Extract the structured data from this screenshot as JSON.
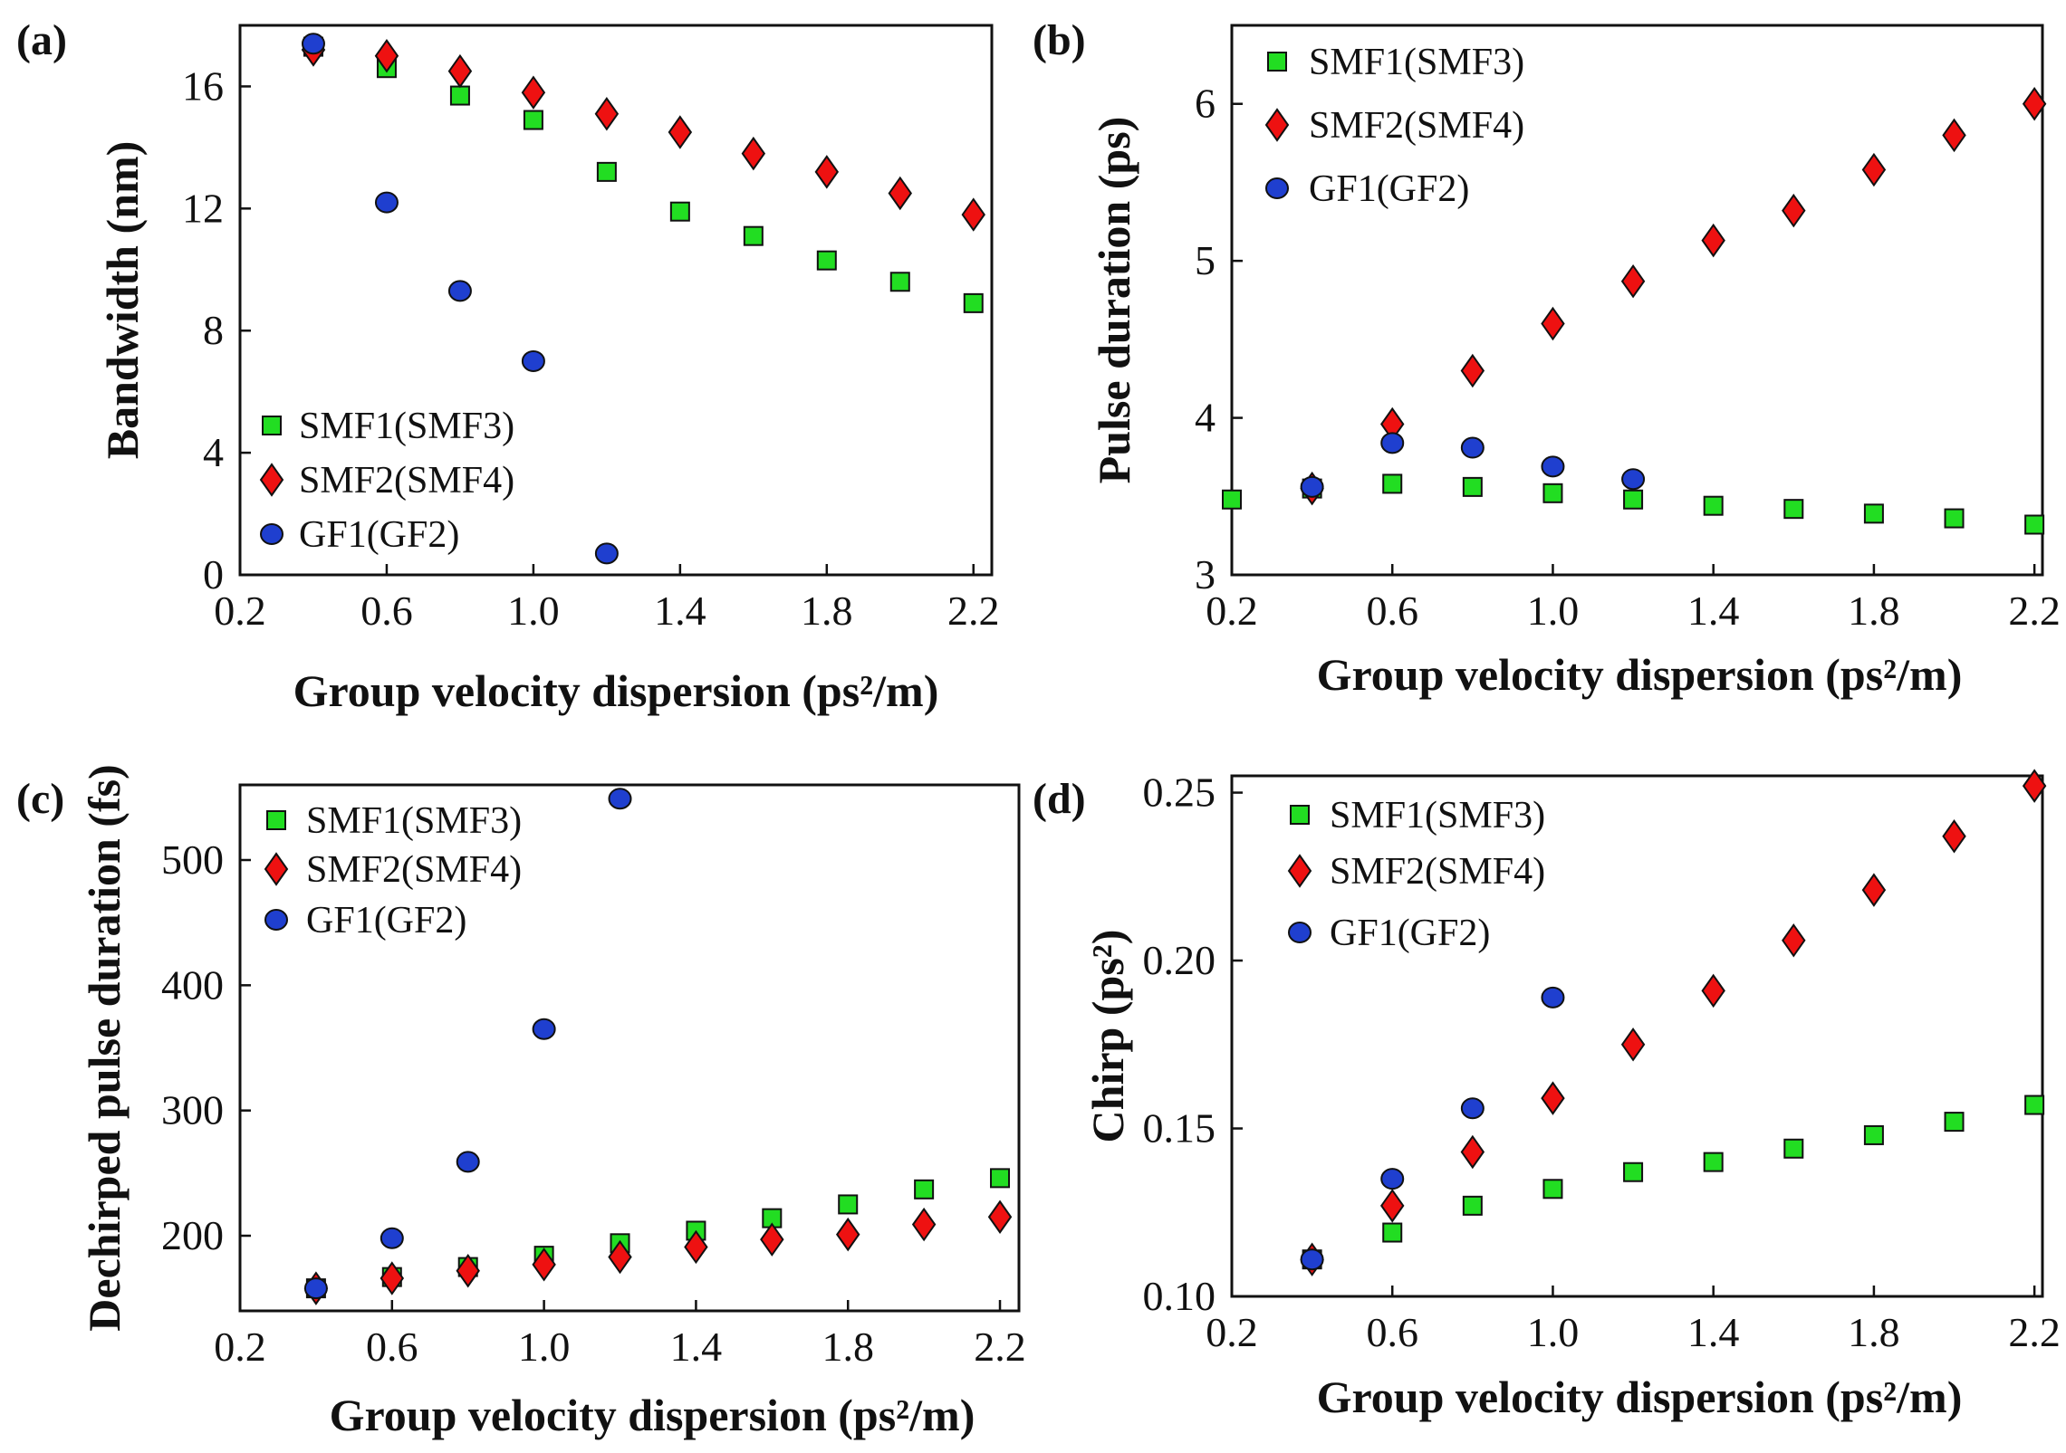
{
  "colors": {
    "smf1": "#22dd22",
    "smf2": "#ee1111",
    "gf1": "#1f3fcf",
    "stroke": "#111111"
  },
  "chart_data": [
    {
      "id": "a",
      "type": "scatter",
      "panel_label": "(a)",
      "xlabel": "Group velocity dispersion",
      "xlabel_unit": "(ps²/m)",
      "ylabel": "Bandwidth (nm)",
      "xlim": [
        0.2,
        2.25
      ],
      "ylim": [
        0,
        18
      ],
      "xticks": [
        0.2,
        0.6,
        1.0,
        1.4,
        1.8,
        2.2
      ],
      "xtick_labels": [
        "0.2",
        "0.6",
        "1.0",
        "1.4",
        "1.8",
        "2.2"
      ],
      "yticks": [
        0,
        4,
        8,
        12,
        16
      ],
      "ytick_labels": [
        "0",
        "4",
        "8",
        "12",
        "16"
      ],
      "legend_position": "bottom-left",
      "series": [
        {
          "name": "SMF1(SMF3)",
          "marker": "square",
          "color_key": "smf1",
          "x": [
            0.4,
            0.6,
            0.8,
            1.0,
            1.2,
            1.4,
            1.6,
            1.8,
            2.0,
            2.2
          ],
          "y": [
            17.3,
            16.6,
            15.7,
            14.9,
            13.2,
            11.9,
            11.1,
            10.3,
            9.6,
            8.9
          ]
        },
        {
          "name": "SMF2(SMF4)",
          "marker": "diamond",
          "color_key": "smf2",
          "x": [
            0.4,
            0.6,
            0.8,
            1.0,
            1.2,
            1.4,
            1.6,
            1.8,
            2.0,
            2.2
          ],
          "y": [
            17.2,
            17.0,
            16.5,
            15.8,
            15.1,
            14.5,
            13.8,
            13.2,
            12.5,
            11.8
          ]
        },
        {
          "name": "GF1(GF2)",
          "marker": "circle",
          "color_key": "gf1",
          "x": [
            0.4,
            0.6,
            0.8,
            1.0,
            1.2
          ],
          "y": [
            17.4,
            12.2,
            9.3,
            7.0,
            0.7
          ]
        }
      ]
    },
    {
      "id": "b",
      "type": "scatter",
      "panel_label": "(b)",
      "xlabel": "Group velocity dispersion",
      "xlabel_unit": "(ps²/m)",
      "ylabel": "Pulse duration (ps)",
      "xlim": [
        0.2,
        2.22
      ],
      "ylim": [
        3,
        6.5
      ],
      "xticks": [
        0.2,
        0.6,
        1.0,
        1.4,
        1.8,
        2.2
      ],
      "xtick_labels": [
        "0.2",
        "0.6",
        "1.0",
        "1.4",
        "1.8",
        "2.2"
      ],
      "yticks": [
        3,
        4,
        5,
        6
      ],
      "ytick_labels": [
        "3",
        "4",
        "5",
        "6"
      ],
      "legend_position": "top-left",
      "series": [
        {
          "name": "SMF1(SMF3)",
          "marker": "square",
          "color_key": "smf1",
          "x": [
            0.2,
            0.4,
            0.6,
            0.8,
            1.0,
            1.2,
            1.4,
            1.6,
            1.8,
            2.0,
            2.2
          ],
          "y": [
            3.48,
            3.55,
            3.58,
            3.56,
            3.52,
            3.48,
            3.44,
            3.42,
            3.39,
            3.36,
            3.32
          ]
        },
        {
          "name": "SMF2(SMF4)",
          "marker": "diamond",
          "color_key": "smf2",
          "x": [
            0.4,
            0.6,
            0.8,
            1.0,
            1.2,
            1.4,
            1.6,
            1.8,
            2.0,
            2.2
          ],
          "y": [
            3.55,
            3.96,
            4.3,
            4.6,
            4.87,
            5.13,
            5.32,
            5.58,
            5.8,
            6.0
          ]
        },
        {
          "name": "GF1(GF2)",
          "marker": "circle",
          "color_key": "gf1",
          "x": [
            0.4,
            0.6,
            0.8,
            1.0,
            1.2
          ],
          "y": [
            3.56,
            3.84,
            3.81,
            3.69,
            3.61
          ]
        }
      ]
    },
    {
      "id": "c",
      "type": "scatter",
      "panel_label": "(c)",
      "xlabel": "Group velocity dispersion",
      "xlabel_unit": "(ps²/m)",
      "ylabel": "Dechirped pulse duration (fs)",
      "xlim": [
        0.2,
        2.25
      ],
      "ylim": [
        140,
        560
      ],
      "xticks": [
        0.2,
        0.6,
        1.0,
        1.4,
        1.8,
        2.2
      ],
      "xtick_labels": [
        "0.2",
        "0.6",
        "1.0",
        "1.4",
        "1.8",
        "2.2"
      ],
      "yticks": [
        200,
        300,
        400,
        500
      ],
      "ytick_labels": [
        "200",
        "300",
        "400",
        "500"
      ],
      "legend_position": "top-left",
      "series": [
        {
          "name": "SMF1(SMF3)",
          "marker": "square",
          "color_key": "smf1",
          "x": [
            0.4,
            0.6,
            0.8,
            1.0,
            1.2,
            1.4,
            1.6,
            1.8,
            2.0,
            2.2
          ],
          "y": [
            158,
            167,
            175,
            184,
            194,
            204,
            214,
            225,
            237,
            246
          ]
        },
        {
          "name": "SMF2(SMF4)",
          "marker": "diamond",
          "color_key": "smf2",
          "x": [
            0.4,
            0.6,
            0.8,
            1.0,
            1.2,
            1.4,
            1.6,
            1.8,
            2.0,
            2.2
          ],
          "y": [
            158,
            166,
            172,
            177,
            183,
            191,
            197,
            201,
            209,
            215
          ]
        },
        {
          "name": "GF1(GF2)",
          "marker": "circle",
          "color_key": "gf1",
          "x": [
            0.4,
            0.6,
            0.8,
            1.0,
            1.2
          ],
          "y": [
            158,
            198,
            259,
            365,
            549
          ]
        }
      ]
    },
    {
      "id": "d",
      "type": "scatter",
      "panel_label": "(d)",
      "xlabel": "Group velocity dispersion",
      "xlabel_unit": "(ps²/m)",
      "ylabel": "Chirp",
      "ylabel_unit": "(ps²)",
      "xlim": [
        0.2,
        2.22
      ],
      "ylim": [
        0.1,
        0.255
      ],
      "xticks": [
        0.2,
        0.6,
        1.0,
        1.4,
        1.8,
        2.2
      ],
      "xtick_labels": [
        "0.2",
        "0.6",
        "1.0",
        "1.4",
        "1.8",
        "2.2"
      ],
      "yticks": [
        0.1,
        0.15,
        0.2,
        0.25
      ],
      "ytick_labels": [
        "0.10",
        "0.15",
        "0.20",
        "0.25"
      ],
      "legend_position": "top-left",
      "series": [
        {
          "name": "SMF1(SMF3)",
          "marker": "square",
          "color_key": "smf1",
          "x": [
            0.4,
            0.6,
            0.8,
            1.0,
            1.2,
            1.4,
            1.6,
            1.8,
            2.0,
            2.2
          ],
          "y": [
            0.111,
            0.119,
            0.127,
            0.132,
            0.137,
            0.14,
            0.144,
            0.148,
            0.152,
            0.157
          ]
        },
        {
          "name": "SMF2(SMF4)",
          "marker": "diamond",
          "color_key": "smf2",
          "x": [
            0.4,
            0.6,
            0.8,
            1.0,
            1.2,
            1.4,
            1.6,
            1.8,
            2.0,
            2.2
          ],
          "y": [
            0.111,
            0.127,
            0.143,
            0.159,
            0.175,
            0.191,
            0.206,
            0.221,
            0.237,
            0.252
          ]
        },
        {
          "name": "GF1(GF2)",
          "marker": "circle",
          "color_key": "gf1",
          "x": [
            0.4,
            0.6,
            0.8,
            1.0
          ],
          "y": [
            0.111,
            0.135,
            0.156,
            0.189
          ]
        }
      ]
    }
  ]
}
